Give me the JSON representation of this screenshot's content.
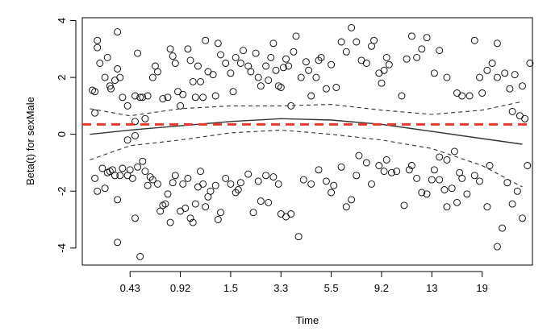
{
  "chart_data": {
    "type": "scatter",
    "title": "",
    "xlabel": "Time",
    "ylabel": "Beta(t) for sexMale",
    "x_axis": {
      "tick_labels": [
        "0.43",
        "0.92",
        "1.5",
        "3.3",
        "5.5",
        "9.2",
        "13",
        "19"
      ],
      "tick_index": [
        1,
        2,
        3,
        4,
        5,
        6,
        7,
        8
      ],
      "xlim": [
        0.05,
        9.0
      ]
    },
    "y_axis": {
      "tick_values": [
        -4,
        -2,
        0,
        2,
        4
      ],
      "tick_labels": [
        "-4",
        "-2",
        "0",
        "2",
        "4"
      ],
      "ylim": [
        -4.6,
        4.1
      ]
    },
    "reference_line": {
      "y": 0.35,
      "style": "dashed",
      "color": "#e8392f"
    },
    "smooth_fit": {
      "x": [
        0.2,
        1,
        2,
        3,
        4,
        5,
        6,
        7,
        8,
        8.8
      ],
      "y": [
        0.0,
        0.15,
        0.3,
        0.45,
        0.55,
        0.5,
        0.35,
        0.1,
        -0.15,
        -0.35
      ]
    },
    "confidence_band": {
      "upper": [
        0.9,
        0.65,
        0.9,
        1.0,
        1.0,
        1.05,
        0.85,
        0.7,
        0.85,
        1.15
      ],
      "lower": [
        -0.9,
        -0.4,
        -0.2,
        0.05,
        0.15,
        0.0,
        -0.2,
        -0.5,
        -1.1,
        -1.85
      ]
    },
    "series": [
      {
        "points": [
          [
            0.25,
            1.55
          ],
          [
            0.3,
            1.5
          ],
          [
            0.35,
            3.3
          ],
          [
            0.35,
            3.05
          ],
          [
            0.4,
            2.5
          ],
          [
            0.5,
            2.0
          ],
          [
            0.55,
            2.7
          ],
          [
            0.6,
            1.7
          ],
          [
            0.62,
            1.6
          ],
          [
            0.7,
            1.9
          ],
          [
            0.75,
            3.6
          ],
          [
            0.75,
            2.3
          ],
          [
            0.8,
            2.0
          ],
          [
            0.85,
            1.3
          ],
          [
            0.95,
            1.0
          ],
          [
            1.1,
            1.35
          ],
          [
            1.15,
            2.85
          ],
          [
            1.2,
            1.3
          ],
          [
            1.25,
            1.3
          ],
          [
            1.3,
            0.55
          ],
          [
            1.35,
            1.35
          ],
          [
            1.45,
            2.0
          ],
          [
            1.5,
            2.4
          ],
          [
            1.55,
            2.2
          ],
          [
            1.65,
            1.25
          ],
          [
            1.75,
            1.3
          ],
          [
            1.8,
            3.0
          ],
          [
            1.85,
            2.75
          ],
          [
            1.9,
            2.5
          ],
          [
            1.95,
            1.5
          ],
          [
            2.0,
            1.0
          ],
          [
            2.05,
            1.4
          ],
          [
            2.15,
            3.0
          ],
          [
            2.2,
            2.6
          ],
          [
            2.25,
            1.85
          ],
          [
            2.3,
            1.3
          ],
          [
            2.35,
            2.4
          ],
          [
            2.4,
            1.85
          ],
          [
            2.45,
            1.3
          ],
          [
            2.5,
            3.3
          ],
          [
            2.55,
            2.2
          ],
          [
            2.65,
            2.1
          ],
          [
            2.7,
            1.35
          ],
          [
            2.75,
            3.2
          ],
          [
            2.8,
            2.8
          ],
          [
            2.9,
            2.5
          ],
          [
            3.0,
            2.15
          ],
          [
            3.05,
            1.5
          ],
          [
            3.1,
            2.7
          ],
          [
            3.2,
            2.5
          ],
          [
            3.25,
            2.95
          ],
          [
            3.35,
            2.4
          ],
          [
            3.4,
            2.2
          ],
          [
            3.5,
            2.85
          ],
          [
            3.55,
            2.0
          ],
          [
            3.6,
            1.7
          ],
          [
            3.7,
            2.4
          ],
          [
            3.75,
            1.9
          ],
          [
            3.8,
            2.7
          ],
          [
            3.85,
            3.2
          ],
          [
            3.9,
            2.25
          ],
          [
            3.95,
            1.7
          ],
          [
            4.0,
            1.65
          ],
          [
            4.05,
            2.35
          ],
          [
            4.1,
            2.65
          ],
          [
            4.15,
            2.4
          ],
          [
            4.2,
            1.0
          ],
          [
            4.25,
            2.9
          ],
          [
            4.3,
            3.45
          ],
          [
            4.4,
            2.0
          ],
          [
            4.5,
            2.55
          ],
          [
            4.55,
            2.25
          ],
          [
            4.6,
            1.35
          ],
          [
            4.7,
            2.0
          ],
          [
            4.75,
            2.6
          ],
          [
            4.8,
            2.7
          ],
          [
            4.9,
            1.6
          ],
          [
            5.0,
            2.45
          ],
          [
            5.1,
            1.65
          ],
          [
            5.2,
            3.25
          ],
          [
            5.3,
            2.9
          ],
          [
            5.4,
            3.75
          ],
          [
            5.5,
            3.25
          ],
          [
            5.6,
            2.6
          ],
          [
            5.7,
            2.5
          ],
          [
            5.8,
            3.1
          ],
          [
            5.85,
            3.3
          ],
          [
            5.95,
            2.15
          ],
          [
            6.0,
            1.8
          ],
          [
            6.05,
            2.25
          ],
          [
            6.1,
            2.7
          ],
          [
            6.15,
            2.45
          ],
          [
            6.4,
            1.35
          ],
          [
            6.5,
            2.65
          ],
          [
            6.6,
            3.45
          ],
          [
            6.7,
            2.7
          ],
          [
            6.8,
            3.0
          ],
          [
            6.9,
            3.4
          ],
          [
            7.05,
            2.15
          ],
          [
            7.15,
            2.95
          ],
          [
            7.3,
            2.0
          ],
          [
            7.5,
            1.45
          ],
          [
            7.6,
            1.35
          ],
          [
            7.75,
            1.35
          ],
          [
            7.85,
            3.3
          ],
          [
            7.95,
            2.0
          ],
          [
            8.1,
            2.25
          ],
          [
            8.2,
            2.5
          ],
          [
            8.3,
            2.0
          ],
          [
            8.45,
            2.15
          ],
          [
            8.55,
            1.6
          ],
          [
            8.65,
            2.1
          ],
          [
            8.8,
            1.7
          ],
          [
            8.3,
            3.2
          ],
          [
            8.0,
            1.45
          ],
          [
            0.3,
            0.75
          ],
          [
            1.1,
            0.45
          ],
          [
            8.6,
            0.8
          ],
          [
            8.75,
            0.65
          ],
          [
            8.85,
            0.55
          ],
          [
            8.95,
            2.5
          ],
          [
            0.3,
            -1.55
          ],
          [
            0.35,
            -2.0
          ],
          [
            0.45,
            -1.2
          ],
          [
            0.5,
            -1.9
          ],
          [
            0.55,
            -1.35
          ],
          [
            0.6,
            -1.3
          ],
          [
            0.65,
            -1.25
          ],
          [
            0.7,
            -1.45
          ],
          [
            0.75,
            -3.8
          ],
          [
            0.75,
            -2.3
          ],
          [
            0.8,
            -1.45
          ],
          [
            0.85,
            -1.2
          ],
          [
            0.95,
            -1.45
          ],
          [
            1.0,
            -1.25
          ],
          [
            1.05,
            -1.55
          ],
          [
            1.1,
            -2.95
          ],
          [
            1.15,
            -1.15
          ],
          [
            1.2,
            -4.3
          ],
          [
            1.25,
            -0.95
          ],
          [
            1.3,
            -1.3
          ],
          [
            1.35,
            -1.8
          ],
          [
            1.4,
            -1.5
          ],
          [
            1.45,
            -1.6
          ],
          [
            1.55,
            -1.75
          ],
          [
            1.6,
            -2.7
          ],
          [
            1.65,
            -2.5
          ],
          [
            1.7,
            -2.45
          ],
          [
            1.75,
            -2.1
          ],
          [
            1.8,
            -3.1
          ],
          [
            1.85,
            -1.7
          ],
          [
            1.9,
            -1.45
          ],
          [
            2.0,
            -2.7
          ],
          [
            2.05,
            -1.75
          ],
          [
            2.1,
            -2.6
          ],
          [
            2.15,
            -1.55
          ],
          [
            2.2,
            -2.95
          ],
          [
            2.25,
            -3.1
          ],
          [
            2.3,
            -2.45
          ],
          [
            2.35,
            -1.85
          ],
          [
            2.4,
            -1.3
          ],
          [
            2.45,
            -1.75
          ],
          [
            2.5,
            -2.55
          ],
          [
            2.55,
            -2.2
          ],
          [
            2.6,
            -2.0
          ],
          [
            2.7,
            -1.8
          ],
          [
            2.75,
            -3.0
          ],
          [
            2.8,
            -2.75
          ],
          [
            2.9,
            -1.55
          ],
          [
            3.0,
            -1.75
          ],
          [
            3.1,
            -2.05
          ],
          [
            3.15,
            -1.95
          ],
          [
            3.2,
            -1.7
          ],
          [
            3.35,
            -1.4
          ],
          [
            3.45,
            -2.75
          ],
          [
            3.55,
            -1.65
          ],
          [
            3.6,
            -2.35
          ],
          [
            3.7,
            -1.45
          ],
          [
            3.75,
            -2.4
          ],
          [
            3.85,
            -1.5
          ],
          [
            3.95,
            -1.75
          ],
          [
            4.0,
            -2.8
          ],
          [
            4.1,
            -2.9
          ],
          [
            4.2,
            -2.8
          ],
          [
            4.35,
            -3.6
          ],
          [
            4.45,
            -1.6
          ],
          [
            4.6,
            -1.75
          ],
          [
            4.75,
            -1.25
          ],
          [
            4.9,
            -1.65
          ],
          [
            5.0,
            -2.05
          ],
          [
            5.05,
            -1.8
          ],
          [
            5.2,
            -1.15
          ],
          [
            5.3,
            -2.55
          ],
          [
            5.4,
            -2.3
          ],
          [
            5.5,
            -1.45
          ],
          [
            5.55,
            -0.75
          ],
          [
            5.7,
            -1.0
          ],
          [
            5.8,
            -1.75
          ],
          [
            5.95,
            -1.1
          ],
          [
            6.05,
            -1.3
          ],
          [
            6.1,
            -0.9
          ],
          [
            6.2,
            -1.35
          ],
          [
            6.3,
            -1.3
          ],
          [
            6.45,
            -2.5
          ],
          [
            6.55,
            -1.25
          ],
          [
            6.6,
            -1.1
          ],
          [
            6.7,
            -1.55
          ],
          [
            6.8,
            -2.05
          ],
          [
            6.9,
            -2.1
          ],
          [
            7.0,
            -1.6
          ],
          [
            7.05,
            -1.25
          ],
          [
            7.15,
            -1.6
          ],
          [
            7.25,
            -1.95
          ],
          [
            7.3,
            -2.55
          ],
          [
            7.4,
            -1.9
          ],
          [
            7.5,
            -2.4
          ],
          [
            7.55,
            -1.35
          ],
          [
            7.6,
            -1.55
          ],
          [
            7.7,
            -2.1
          ],
          [
            7.85,
            -1.45
          ],
          [
            7.95,
            -1.65
          ],
          [
            8.1,
            -2.55
          ],
          [
            8.15,
            -1.1
          ],
          [
            8.3,
            -3.95
          ],
          [
            8.4,
            -3.3
          ],
          [
            8.5,
            -1.7
          ],
          [
            8.6,
            -2.45
          ],
          [
            8.7,
            -2.0
          ],
          [
            8.8,
            -2.95
          ],
          [
            8.9,
            -1.1
          ],
          [
            7.3,
            -0.9
          ],
          [
            7.45,
            -0.6
          ],
          [
            7.15,
            -0.8
          ],
          [
            1.1,
            -0.05
          ],
          [
            0.95,
            -0.2
          ]
        ]
      }
    ],
    "grid": false,
    "legend": "none"
  }
}
